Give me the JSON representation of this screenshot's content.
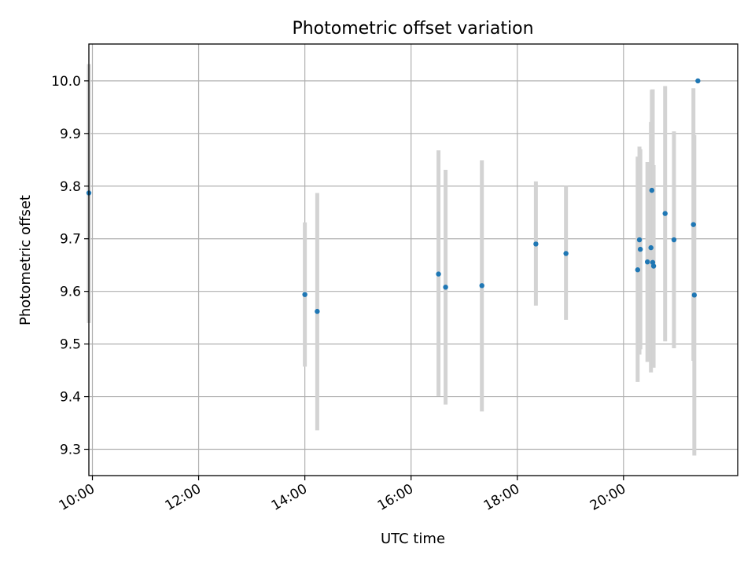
{
  "chart_data": {
    "type": "scatter",
    "title": "Photometric offset variation",
    "xlabel": "UTC time",
    "ylabel": "Photometric offset",
    "xlim": [
      "09:56",
      "22:09"
    ],
    "ylim": [
      9.25,
      10.07
    ],
    "x_ticks": [
      "10:00",
      "12:00",
      "14:00",
      "16:00",
      "18:00",
      "20:00"
    ],
    "y_ticks": [
      9.3,
      9.4,
      9.5,
      9.6,
      9.7,
      9.8,
      9.9,
      10.0
    ],
    "grid": true,
    "legend": "none",
    "colors": {
      "point": "#1f77b4",
      "errorbar": "#d3d3d3",
      "grid": "#b0b0b0"
    },
    "points": [
      {
        "x": "09:56",
        "y": 9.787,
        "err_low": 9.54,
        "err_high": 10.032
      },
      {
        "x": "14:00",
        "y": 9.594,
        "err_low": 9.457,
        "err_high": 9.731
      },
      {
        "x": "14:14",
        "y": 9.562,
        "err_low": 9.336,
        "err_high": 9.787
      },
      {
        "x": "16:31",
        "y": 9.633,
        "err_low": 9.401,
        "err_high": 9.868
      },
      {
        "x": "16:39",
        "y": 9.608,
        "err_low": 9.385,
        "err_high": 9.831
      },
      {
        "x": "17:20",
        "y": 9.611,
        "err_low": 9.372,
        "err_high": 9.849
      },
      {
        "x": "18:21",
        "y": 9.69,
        "err_low": 9.573,
        "err_high": 9.809
      },
      {
        "x": "18:55",
        "y": 9.672,
        "err_low": 9.546,
        "err_high": 9.8
      },
      {
        "x": "20:16",
        "y": 9.641,
        "err_low": 9.428,
        "err_high": 9.856
      },
      {
        "x": "20:18",
        "y": 9.698,
        "err_low": 9.48,
        "err_high": 9.875
      },
      {
        "x": "20:19",
        "y": 9.68,
        "err_low": 9.49,
        "err_high": 9.87
      },
      {
        "x": "20:27",
        "y": 9.656,
        "err_low": 9.466,
        "err_high": 9.846
      },
      {
        "x": "20:31",
        "y": 9.683,
        "err_low": 9.446,
        "err_high": 9.922
      },
      {
        "x": "20:32",
        "y": 9.792,
        "err_low": 9.6,
        "err_high": 9.983
      },
      {
        "x": "20:33",
        "y": 9.655,
        "err_low": 9.46,
        "err_high": 9.984
      },
      {
        "x": "20:34",
        "y": 9.648,
        "err_low": 9.455,
        "err_high": 9.84
      },
      {
        "x": "20:47",
        "y": 9.748,
        "err_low": 9.505,
        "err_high": 9.99
      },
      {
        "x": "20:57",
        "y": 9.698,
        "err_low": 9.492,
        "err_high": 9.904
      },
      {
        "x": "21:19",
        "y": 9.727,
        "err_low": 9.468,
        "err_high": 9.986
      },
      {
        "x": "21:20",
        "y": 9.593,
        "err_low": 9.288,
        "err_high": 9.897
      },
      {
        "x": "21:24",
        "y": 10.0,
        "err_low": 10.0,
        "err_high": 10.0
      }
    ]
  }
}
